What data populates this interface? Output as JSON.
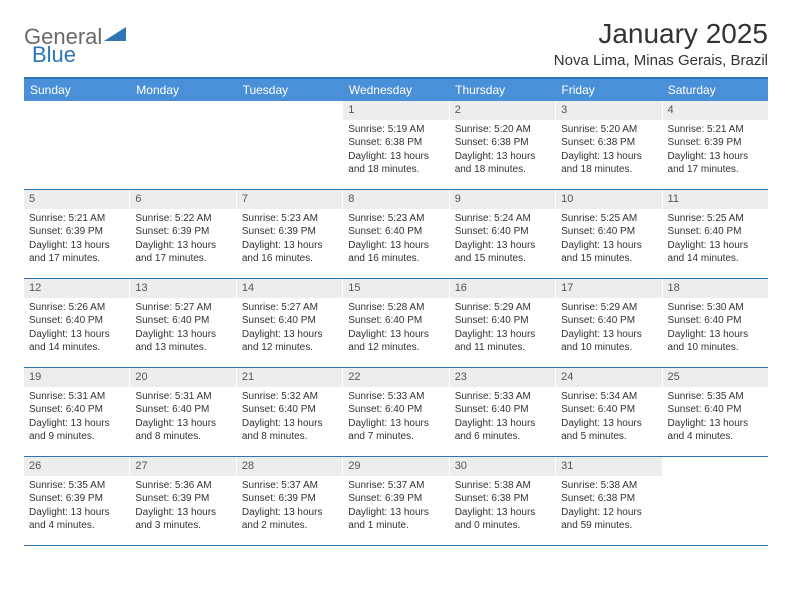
{
  "logo": {
    "word1": "General",
    "word2": "Blue"
  },
  "colors": {
    "header_bg": "#4a90d9",
    "border": "#2e75b6",
    "daynum_bg": "#ededed",
    "text": "#333333",
    "logo_gray": "#6a6a6a",
    "logo_blue": "#2e75b6"
  },
  "title": "January 2025",
  "location": "Nova Lima, Minas Gerais, Brazil",
  "weekdays": [
    "Sunday",
    "Monday",
    "Tuesday",
    "Wednesday",
    "Thursday",
    "Friday",
    "Saturday"
  ],
  "weeks": [
    [
      null,
      null,
      null,
      {
        "n": "1",
        "sunrise": "5:19 AM",
        "sunset": "6:38 PM",
        "daylight": "13 hours and 18 minutes."
      },
      {
        "n": "2",
        "sunrise": "5:20 AM",
        "sunset": "6:38 PM",
        "daylight": "13 hours and 18 minutes."
      },
      {
        "n": "3",
        "sunrise": "5:20 AM",
        "sunset": "6:38 PM",
        "daylight": "13 hours and 18 minutes."
      },
      {
        "n": "4",
        "sunrise": "5:21 AM",
        "sunset": "6:39 PM",
        "daylight": "13 hours and 17 minutes."
      }
    ],
    [
      {
        "n": "5",
        "sunrise": "5:21 AM",
        "sunset": "6:39 PM",
        "daylight": "13 hours and 17 minutes."
      },
      {
        "n": "6",
        "sunrise": "5:22 AM",
        "sunset": "6:39 PM",
        "daylight": "13 hours and 17 minutes."
      },
      {
        "n": "7",
        "sunrise": "5:23 AM",
        "sunset": "6:39 PM",
        "daylight": "13 hours and 16 minutes."
      },
      {
        "n": "8",
        "sunrise": "5:23 AM",
        "sunset": "6:40 PM",
        "daylight": "13 hours and 16 minutes."
      },
      {
        "n": "9",
        "sunrise": "5:24 AM",
        "sunset": "6:40 PM",
        "daylight": "13 hours and 15 minutes."
      },
      {
        "n": "10",
        "sunrise": "5:25 AM",
        "sunset": "6:40 PM",
        "daylight": "13 hours and 15 minutes."
      },
      {
        "n": "11",
        "sunrise": "5:25 AM",
        "sunset": "6:40 PM",
        "daylight": "13 hours and 14 minutes."
      }
    ],
    [
      {
        "n": "12",
        "sunrise": "5:26 AM",
        "sunset": "6:40 PM",
        "daylight": "13 hours and 14 minutes."
      },
      {
        "n": "13",
        "sunrise": "5:27 AM",
        "sunset": "6:40 PM",
        "daylight": "13 hours and 13 minutes."
      },
      {
        "n": "14",
        "sunrise": "5:27 AM",
        "sunset": "6:40 PM",
        "daylight": "13 hours and 12 minutes."
      },
      {
        "n": "15",
        "sunrise": "5:28 AM",
        "sunset": "6:40 PM",
        "daylight": "13 hours and 12 minutes."
      },
      {
        "n": "16",
        "sunrise": "5:29 AM",
        "sunset": "6:40 PM",
        "daylight": "13 hours and 11 minutes."
      },
      {
        "n": "17",
        "sunrise": "5:29 AM",
        "sunset": "6:40 PM",
        "daylight": "13 hours and 10 minutes."
      },
      {
        "n": "18",
        "sunrise": "5:30 AM",
        "sunset": "6:40 PM",
        "daylight": "13 hours and 10 minutes."
      }
    ],
    [
      {
        "n": "19",
        "sunrise": "5:31 AM",
        "sunset": "6:40 PM",
        "daylight": "13 hours and 9 minutes."
      },
      {
        "n": "20",
        "sunrise": "5:31 AM",
        "sunset": "6:40 PM",
        "daylight": "13 hours and 8 minutes."
      },
      {
        "n": "21",
        "sunrise": "5:32 AM",
        "sunset": "6:40 PM",
        "daylight": "13 hours and 8 minutes."
      },
      {
        "n": "22",
        "sunrise": "5:33 AM",
        "sunset": "6:40 PM",
        "daylight": "13 hours and 7 minutes."
      },
      {
        "n": "23",
        "sunrise": "5:33 AM",
        "sunset": "6:40 PM",
        "daylight": "13 hours and 6 minutes."
      },
      {
        "n": "24",
        "sunrise": "5:34 AM",
        "sunset": "6:40 PM",
        "daylight": "13 hours and 5 minutes."
      },
      {
        "n": "25",
        "sunrise": "5:35 AM",
        "sunset": "6:40 PM",
        "daylight": "13 hours and 4 minutes."
      }
    ],
    [
      {
        "n": "26",
        "sunrise": "5:35 AM",
        "sunset": "6:39 PM",
        "daylight": "13 hours and 4 minutes."
      },
      {
        "n": "27",
        "sunrise": "5:36 AM",
        "sunset": "6:39 PM",
        "daylight": "13 hours and 3 minutes."
      },
      {
        "n": "28",
        "sunrise": "5:37 AM",
        "sunset": "6:39 PM",
        "daylight": "13 hours and 2 minutes."
      },
      {
        "n": "29",
        "sunrise": "5:37 AM",
        "sunset": "6:39 PM",
        "daylight": "13 hours and 1 minute."
      },
      {
        "n": "30",
        "sunrise": "5:38 AM",
        "sunset": "6:38 PM",
        "daylight": "13 hours and 0 minutes."
      },
      {
        "n": "31",
        "sunrise": "5:38 AM",
        "sunset": "6:38 PM",
        "daylight": "12 hours and 59 minutes."
      },
      null
    ]
  ],
  "labels": {
    "sunrise": "Sunrise:",
    "sunset": "Sunset:",
    "daylight": "Daylight:"
  }
}
